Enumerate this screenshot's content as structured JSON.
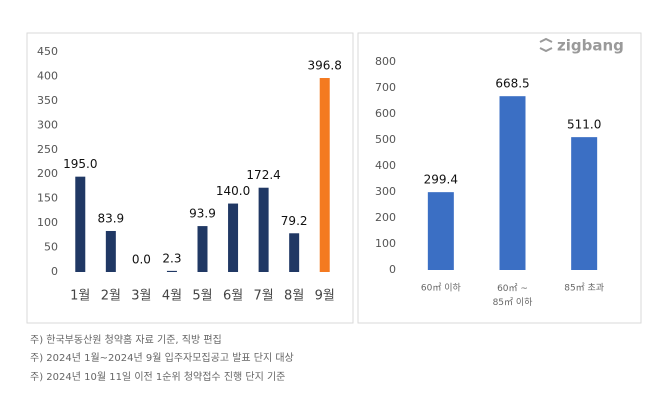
{
  "chart_data": [
    {
      "type": "bar",
      "categories": [
        "1월",
        "2월",
        "3월",
        "4월",
        "5월",
        "6월",
        "7월",
        "8월",
        "9월"
      ],
      "values": [
        195.0,
        83.9,
        0.0,
        2.3,
        93.9,
        140.0,
        172.4,
        79.2,
        396.8
      ],
      "value_labels": [
        "195.0",
        "83.9",
        "0.0",
        "2.3",
        "93.9",
        "140.0",
        "172.4",
        "79.2",
        "396.8"
      ],
      "colors": [
        "#203864",
        "#203864",
        "#203864",
        "#203864",
        "#203864",
        "#203864",
        "#203864",
        "#203864",
        "#f47a20"
      ],
      "ylim": [
        0,
        450
      ],
      "yticks": [
        0,
        50,
        100,
        150,
        200,
        250,
        300,
        350,
        400,
        450
      ],
      "grid": false
    },
    {
      "type": "bar",
      "categories": [
        "60㎡ 이하",
        "60㎡ ~\n85㎡ 이하",
        "85㎡ 초과"
      ],
      "values": [
        299.4,
        668.5,
        511.0
      ],
      "value_labels": [
        "299.4",
        "668.5",
        "511.0"
      ],
      "colors": [
        "#3b6fc4",
        "#3b6fc4",
        "#3b6fc4"
      ],
      "ylim": [
        0,
        800
      ],
      "yticks": [
        0,
        100,
        200,
        300,
        400,
        500,
        600,
        700,
        800
      ],
      "grid": false
    }
  ],
  "brand": "zigbang",
  "footnotes": [
    "주) 한국부동산원 청약홈 자료 기준, 직방 편집",
    "주) 2024년 1월~2024년 9월 입주자모집공고 발표 단지 대상",
    "주) 2024년 10월 11일 이전 1순위 청약접수 진행 단지 기준"
  ]
}
